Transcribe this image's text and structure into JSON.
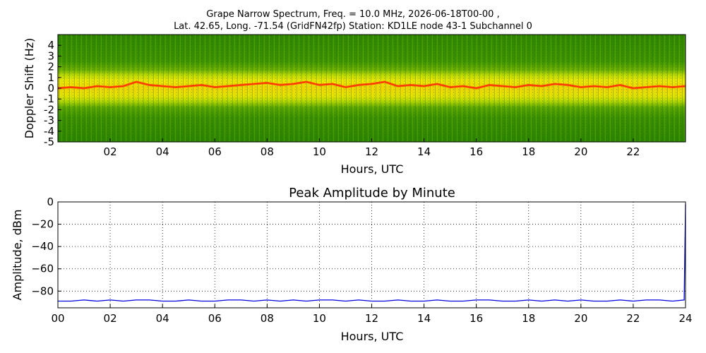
{
  "figure": {
    "title_line1": "Grape Narrow Spectrum, Freq. = 10.0 MHz, 2026-06-18T00-00 ,",
    "title_line2": "Lat.  42.65, Long. -71.54 (GridFN42fp) Station: KD1LE node 43-1 Subchannel 0"
  },
  "chart_data": [
    {
      "type": "heatmap",
      "title": "",
      "xlabel": "Hours, UTC",
      "ylabel": "Doppler Shift (Hz)",
      "xlim": [
        0,
        24
      ],
      "ylim": [
        -5,
        5
      ],
      "x_ticks": [
        "02",
        "04",
        "06",
        "08",
        "10",
        "12",
        "14",
        "16",
        "18",
        "20",
        "22"
      ],
      "x_tick_values": [
        2,
        4,
        6,
        8,
        10,
        12,
        14,
        16,
        18,
        20,
        22
      ],
      "y_ticks": [
        "4",
        "3",
        "2",
        "1",
        "0",
        "-1",
        "-2",
        "-3",
        "-4",
        "-5"
      ],
      "y_tick_values": [
        4,
        3,
        2,
        1,
        0,
        -1,
        -2,
        -3,
        -4,
        -5
      ],
      "colors": {
        "background": "#2f8a00",
        "mid": "#c8e000",
        "peak": "#ff4800"
      },
      "peak_line": {
        "x": [
          0,
          0.5,
          1,
          1.5,
          2,
          2.5,
          3,
          3.5,
          4,
          4.5,
          5,
          5.5,
          6,
          6.5,
          7,
          7.5,
          8,
          8.5,
          9,
          9.5,
          10,
          10.5,
          11,
          11.5,
          12,
          12.5,
          13,
          13.5,
          14,
          14.5,
          15,
          15.5,
          16,
          16.5,
          17,
          17.5,
          18,
          18.5,
          19,
          19.5,
          20,
          20.5,
          21,
          21.5,
          22,
          22.5,
          23,
          23.5,
          24
        ],
        "y": [
          0.0,
          0.1,
          0.0,
          0.2,
          0.1,
          0.2,
          0.6,
          0.3,
          0.2,
          0.1,
          0.2,
          0.3,
          0.1,
          0.2,
          0.3,
          0.4,
          0.5,
          0.3,
          0.4,
          0.6,
          0.3,
          0.4,
          0.1,
          0.3,
          0.4,
          0.6,
          0.2,
          0.3,
          0.2,
          0.4,
          0.1,
          0.2,
          0.0,
          0.3,
          0.2,
          0.1,
          0.3,
          0.2,
          0.4,
          0.3,
          0.1,
          0.2,
          0.1,
          0.3,
          0.0,
          0.1,
          0.2,
          0.1,
          0.2
        ]
      }
    },
    {
      "type": "line",
      "title": "Peak Amplitude by Minute",
      "xlabel": "Hours, UTC",
      "ylabel": "Amplitude, dBm",
      "xlim": [
        0,
        24
      ],
      "ylim": [
        -95,
        0
      ],
      "x_ticks": [
        "00",
        "02",
        "04",
        "06",
        "08",
        "10",
        "12",
        "14",
        "16",
        "18",
        "20",
        "22",
        "24"
      ],
      "x_tick_values": [
        0,
        2,
        4,
        6,
        8,
        10,
        12,
        14,
        16,
        18,
        20,
        22,
        24
      ],
      "y_ticks": [
        "0",
        "−20",
        "−40",
        "−60",
        "−80"
      ],
      "y_tick_values": [
        0,
        -20,
        -40,
        -60,
        -80
      ],
      "grid": true,
      "series": [
        {
          "color": "#0000dd",
          "x": [
            0,
            0.5,
            1,
            1.5,
            2,
            2.5,
            3,
            3.5,
            4,
            4.5,
            5,
            5.5,
            6,
            6.5,
            7,
            7.5,
            8,
            8.5,
            9,
            9.5,
            10,
            10.5,
            11,
            11.5,
            12,
            12.5,
            13,
            13.5,
            14,
            14.5,
            15,
            15.5,
            16,
            16.5,
            17,
            17.5,
            18,
            18.5,
            19,
            19.5,
            20,
            20.5,
            21,
            21.5,
            22,
            22.5,
            23,
            23.5,
            23.95,
            24
          ],
          "y": [
            -89,
            -89,
            -88,
            -89,
            -88,
            -89,
            -88,
            -88,
            -89,
            -89,
            -88,
            -89,
            -89,
            -88,
            -88,
            -89,
            -88,
            -89,
            -88,
            -89,
            -88,
            -88,
            -89,
            -88,
            -89,
            -89,
            -88,
            -89,
            -89,
            -88,
            -89,
            -89,
            -88,
            -88,
            -89,
            -89,
            -88,
            -89,
            -88,
            -89,
            -88,
            -89,
            -89,
            -88,
            -89,
            -88,
            -88,
            -89,
            -88,
            -2
          ]
        }
      ]
    }
  ]
}
